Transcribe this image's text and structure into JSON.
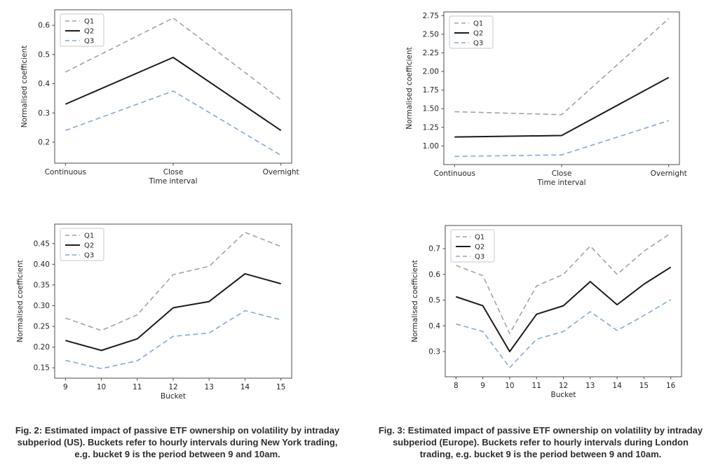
{
  "page": {
    "background": "#ffffff"
  },
  "colors": {
    "q1": "#a3a3a3",
    "q2": "#1c1c1c",
    "q3": "#85aad4",
    "spine": "#4c4c4c",
    "text": "#262626",
    "legend_border": "#c9c9c9"
  },
  "figures": [
    {
      "id": "fig-2",
      "caption": "Fig. 2: Estimated impact of passive ETF ownership on volatility by intraday subperiod (US). Buckets refer to hourly intervals during New York trading, e.g. bucket 9 is the period between 9 and 10am."
    },
    {
      "id": "fig-3",
      "caption": "Fig. 3: Estimated impact of passive ETF ownership on volatility by intraday subperiod (Europe). Buckets refer to hourly intervals during London trading, e.g. bucket 9 is the period between 9 and 10am."
    }
  ],
  "chart_data": [
    {
      "type": "line",
      "figure": "Fig. 2",
      "position": "top-left",
      "x_type": "category",
      "categories": [
        "Continuous",
        "Close",
        "Overnight"
      ],
      "xlabel": "Time interval",
      "ylabel": "Normalised coefficient",
      "xlim": [
        -0.1,
        2.1
      ],
      "ylim": [
        0.128,
        0.653
      ],
      "yticks": [
        0.2,
        0.3,
        0.4,
        0.5,
        0.6
      ],
      "ytick_labels": [
        "0.2",
        "0.3",
        "0.4",
        "0.5",
        "0.6"
      ],
      "grid": false,
      "legend": {
        "location": "upper left",
        "entries": [
          "Q1",
          "Q2",
          "Q3"
        ]
      },
      "series": [
        {
          "name": "Q1",
          "style": "dashed",
          "color_key": "q1",
          "values": [
            0.44,
            0.625,
            0.345
          ]
        },
        {
          "name": "Q2",
          "style": "solid",
          "color_key": "q2",
          "values": [
            0.33,
            0.49,
            0.24
          ]
        },
        {
          "name": "Q3",
          "style": "dashed",
          "color_key": "q3",
          "values": [
            0.24,
            0.375,
            0.155
          ]
        }
      ]
    },
    {
      "type": "line",
      "figure": "Fig. 3",
      "position": "top-right",
      "x_type": "category",
      "categories": [
        "Continuous",
        "Close",
        "Overnight"
      ],
      "xlabel": "Time interval",
      "ylabel": "Normalised coefficient",
      "xlim": [
        -0.1,
        2.1
      ],
      "ylim": [
        0.75,
        2.8
      ],
      "yticks": [
        1.0,
        1.25,
        1.5,
        1.75,
        2.0,
        2.25,
        2.5,
        2.75
      ],
      "ytick_labels": [
        "1.00",
        "1.25",
        "1.50",
        "1.75",
        "2.00",
        "2.25",
        "2.50",
        "2.75"
      ],
      "grid": false,
      "legend": {
        "location": "upper left",
        "entries": [
          "Q1",
          "Q2",
          "Q3"
        ]
      },
      "series": [
        {
          "name": "Q1",
          "style": "dashed",
          "color_key": "q1",
          "values": [
            1.46,
            1.42,
            2.71
          ]
        },
        {
          "name": "Q2",
          "style": "solid",
          "color_key": "q2",
          "values": [
            1.12,
            1.14,
            1.92
          ]
        },
        {
          "name": "Q3",
          "style": "dashed",
          "color_key": "q3",
          "values": [
            0.86,
            0.88,
            1.34
          ]
        }
      ]
    },
    {
      "type": "line",
      "figure": "Fig. 2",
      "position": "bottom-left",
      "x_type": "numeric",
      "x": [
        9,
        10,
        11,
        12,
        13,
        14,
        15
      ],
      "xlabel": "Bucket",
      "ylabel": "Normalised coefficient",
      "xlim": [
        8.7,
        15.3
      ],
      "ylim": [
        0.125,
        0.497
      ],
      "yticks": [
        0.15,
        0.2,
        0.25,
        0.3,
        0.35,
        0.4,
        0.45
      ],
      "ytick_labels": [
        "0.15",
        "0.20",
        "0.25",
        "0.30",
        "0.35",
        "0.40",
        "0.45"
      ],
      "grid": false,
      "legend": {
        "location": "upper left",
        "entries": [
          "Q1",
          "Q2",
          "Q3"
        ]
      },
      "series": [
        {
          "name": "Q1",
          "style": "dashed",
          "color_key": "q1",
          "values": [
            0.27,
            0.24,
            0.278,
            0.375,
            0.395,
            0.477,
            0.443
          ]
        },
        {
          "name": "Q2",
          "style": "solid",
          "color_key": "q2",
          "values": [
            0.216,
            0.192,
            0.22,
            0.295,
            0.31,
            0.377,
            0.353
          ]
        },
        {
          "name": "Q3",
          "style": "dashed",
          "color_key": "q3",
          "values": [
            0.168,
            0.148,
            0.167,
            0.226,
            0.234,
            0.288,
            0.266
          ]
        }
      ]
    },
    {
      "type": "line",
      "figure": "Fig. 3",
      "position": "bottom-right",
      "x_type": "numeric",
      "x": [
        8,
        9,
        10,
        11,
        12,
        13,
        14,
        15,
        16
      ],
      "xlabel": "Bucket",
      "ylabel": "Normalised coefficient",
      "xlim": [
        7.6,
        16.4
      ],
      "ylim": [
        0.202,
        0.79
      ],
      "yticks": [
        0.3,
        0.4,
        0.5,
        0.6,
        0.7
      ],
      "ytick_labels": [
        "0.3",
        "0.4",
        "0.5",
        "0.6",
        "0.7"
      ],
      "grid": false,
      "legend": {
        "location": "upper left",
        "entries": [
          "Q1",
          "Q2",
          "Q3"
        ]
      },
      "series": [
        {
          "name": "Q1",
          "style": "dashed",
          "color_key": "q1",
          "values": [
            0.635,
            0.595,
            0.37,
            0.555,
            0.6,
            0.71,
            0.6,
            0.69,
            0.76
          ]
        },
        {
          "name": "Q2",
          "style": "solid",
          "color_key": "q2",
          "values": [
            0.513,
            0.478,
            0.3,
            0.445,
            0.478,
            0.572,
            0.482,
            0.562,
            0.628
          ]
        },
        {
          "name": "Q3",
          "style": "dashed",
          "color_key": "q3",
          "values": [
            0.407,
            0.378,
            0.238,
            0.348,
            0.378,
            0.455,
            0.382,
            0.44,
            0.502
          ]
        }
      ]
    }
  ]
}
